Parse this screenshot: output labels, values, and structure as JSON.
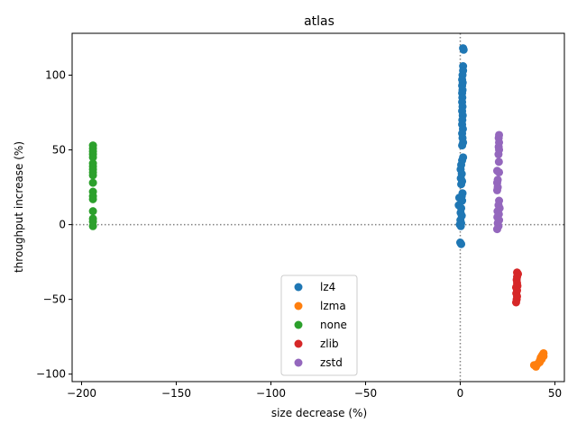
{
  "chart_data": {
    "type": "scatter",
    "title": "atlas",
    "xlabel": "size decrease (%)",
    "ylabel": "throughput increase (%)",
    "xlim": [
      -205,
      55
    ],
    "ylim": [
      -105,
      128
    ],
    "xticks": [
      -200,
      -150,
      -100,
      -50,
      0,
      50
    ],
    "yticks": [
      -100,
      -50,
      0,
      50,
      100
    ],
    "reference_lines": [
      {
        "orientation": "horizontal",
        "value": 0,
        "style": "dotted",
        "color": "#808080"
      },
      {
        "orientation": "vertical",
        "value": 0,
        "style": "dotted",
        "color": "#808080"
      }
    ],
    "grid": false,
    "legend": {
      "placement": "lower-center"
    },
    "series": [
      {
        "name": "lz4",
        "color": "#1f77b4",
        "points": [
          [
            1.5,
            118
          ],
          [
            1.8,
            117
          ],
          [
            1.5,
            106
          ],
          [
            1.5,
            103
          ],
          [
            1.2,
            100
          ],
          [
            1.0,
            97
          ],
          [
            1.3,
            95
          ],
          [
            1.0,
            93
          ],
          [
            1.2,
            90
          ],
          [
            1.0,
            88
          ],
          [
            1.1,
            85
          ],
          [
            1.0,
            82
          ],
          [
            1.2,
            79
          ],
          [
            1.0,
            76
          ],
          [
            1.3,
            73
          ],
          [
            1.1,
            70
          ],
          [
            1.0,
            67
          ],
          [
            1.4,
            64
          ],
          [
            1.0,
            61
          ],
          [
            1.2,
            58
          ],
          [
            1.5,
            55
          ],
          [
            1.0,
            53
          ],
          [
            1.5,
            45
          ],
          [
            1.0,
            43
          ],
          [
            0.5,
            40
          ],
          [
            0.2,
            37
          ],
          [
            0.8,
            34
          ],
          [
            0.3,
            31
          ],
          [
            1.0,
            29
          ],
          [
            0.5,
            27
          ],
          [
            1.2,
            21
          ],
          [
            0.8,
            19
          ],
          [
            -0.5,
            18
          ],
          [
            1.0,
            16
          ],
          [
            -0.8,
            13
          ],
          [
            0.5,
            11
          ],
          [
            0.2,
            8
          ],
          [
            0.8,
            6
          ],
          [
            0.1,
            3
          ],
          [
            0.5,
            1
          ],
          [
            -0.2,
            0
          ],
          [
            0.3,
            -1
          ],
          [
            0.0,
            -12
          ],
          [
            0.5,
            -13
          ]
        ]
      },
      {
        "name": "lzma",
        "color": "#ff7f0e",
        "points": [
          [
            39,
            -94
          ],
          [
            40,
            -95
          ],
          [
            41,
            -93
          ],
          [
            42,
            -91
          ],
          [
            42.5,
            -89
          ],
          [
            43,
            -88
          ],
          [
            43.5,
            -87
          ],
          [
            44,
            -86
          ],
          [
            43,
            -90
          ],
          [
            44,
            -88
          ],
          [
            42,
            -92
          ]
        ]
      },
      {
        "name": "none",
        "color": "#2ca02c",
        "points": [
          [
            -194,
            53
          ],
          [
            -194,
            51
          ],
          [
            -194,
            49
          ],
          [
            -194,
            47
          ],
          [
            -194,
            45
          ],
          [
            -194,
            41
          ],
          [
            -194,
            39
          ],
          [
            -194,
            37
          ],
          [
            -194,
            35
          ],
          [
            -194,
            33
          ],
          [
            -194,
            28
          ],
          [
            -194,
            22
          ],
          [
            -194,
            19
          ],
          [
            -194,
            17
          ],
          [
            -194,
            9
          ],
          [
            -194,
            4
          ],
          [
            -194,
            2
          ],
          [
            -194,
            -1
          ]
        ]
      },
      {
        "name": "zlib",
        "color": "#d62728",
        "points": [
          [
            30,
            -32
          ],
          [
            30.5,
            -33
          ],
          [
            30,
            -35
          ],
          [
            29.8,
            -37
          ],
          [
            30,
            -39
          ],
          [
            30.2,
            -41
          ],
          [
            29.5,
            -42
          ],
          [
            30,
            -44
          ],
          [
            29.6,
            -46
          ],
          [
            30,
            -48
          ],
          [
            29.8,
            -50
          ],
          [
            29.5,
            -52
          ]
        ]
      },
      {
        "name": "zstd",
        "color": "#9467bd",
        "points": [
          [
            20.5,
            60
          ],
          [
            20.3,
            58
          ],
          [
            20.5,
            55
          ],
          [
            20.3,
            52
          ],
          [
            20.5,
            50
          ],
          [
            20.2,
            47
          ],
          [
            20.4,
            42
          ],
          [
            19.5,
            36
          ],
          [
            20.5,
            35
          ],
          [
            19.8,
            30
          ],
          [
            19.5,
            28
          ],
          [
            19.8,
            25
          ],
          [
            19.5,
            23
          ],
          [
            20.5,
            16
          ],
          [
            20.2,
            13
          ],
          [
            20.8,
            11
          ],
          [
            19.7,
            9
          ],
          [
            20.4,
            7
          ],
          [
            19.6,
            5
          ],
          [
            20.5,
            3
          ],
          [
            19.8,
            1
          ],
          [
            20.2,
            -1
          ],
          [
            19.5,
            -3
          ]
        ]
      }
    ]
  }
}
